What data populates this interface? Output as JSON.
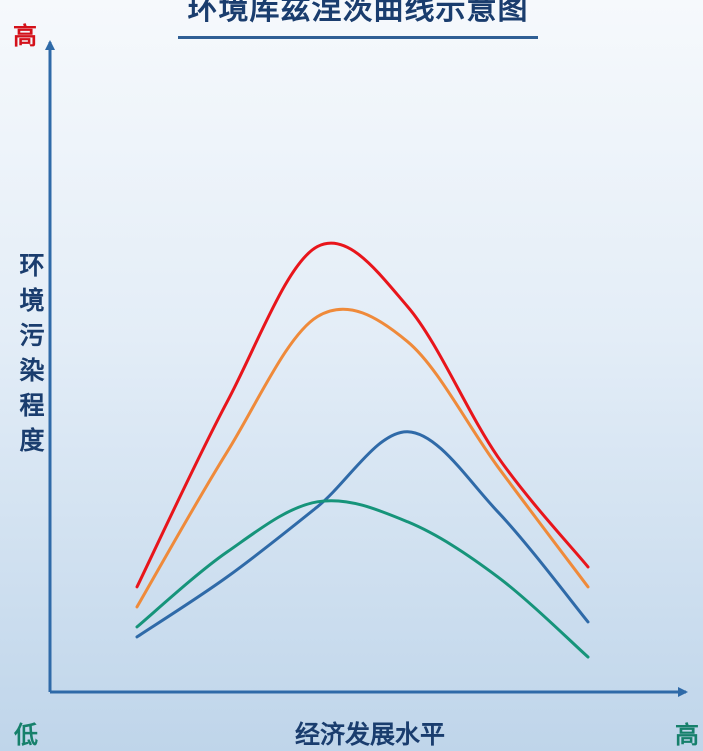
{
  "chart_data": {
    "type": "line",
    "title": "环境库兹涅茨曲线示意图",
    "xlabel": "经济发展水平",
    "ylabel": "环境污染程度",
    "y_high_label": "高",
    "x_low_label": "低",
    "x_high_label": "高",
    "axis_ticks": false,
    "grid": false,
    "legend": false,
    "x": [
      0.0,
      0.2,
      0.4,
      0.6,
      0.8,
      1.0
    ],
    "series": [
      {
        "color": "#e8151b",
        "values": [
          0.21,
          0.58,
          0.89,
          0.77,
          0.47,
          0.25
        ]
      },
      {
        "color": "#ef8a3a",
        "values": [
          0.17,
          0.48,
          0.75,
          0.7,
          0.45,
          0.21
        ]
      },
      {
        "color": "#2f6aa8",
        "values": [
          0.11,
          0.23,
          0.37,
          0.52,
          0.36,
          0.14
        ]
      },
      {
        "color": "#16947a",
        "values": [
          0.13,
          0.28,
          0.38,
          0.34,
          0.23,
          0.07
        ]
      }
    ]
  },
  "colors": {
    "axis": "#2f6aa8",
    "title": "#1a3d6e",
    "high_y": "#d4111a",
    "end_labels": "#16806b"
  }
}
